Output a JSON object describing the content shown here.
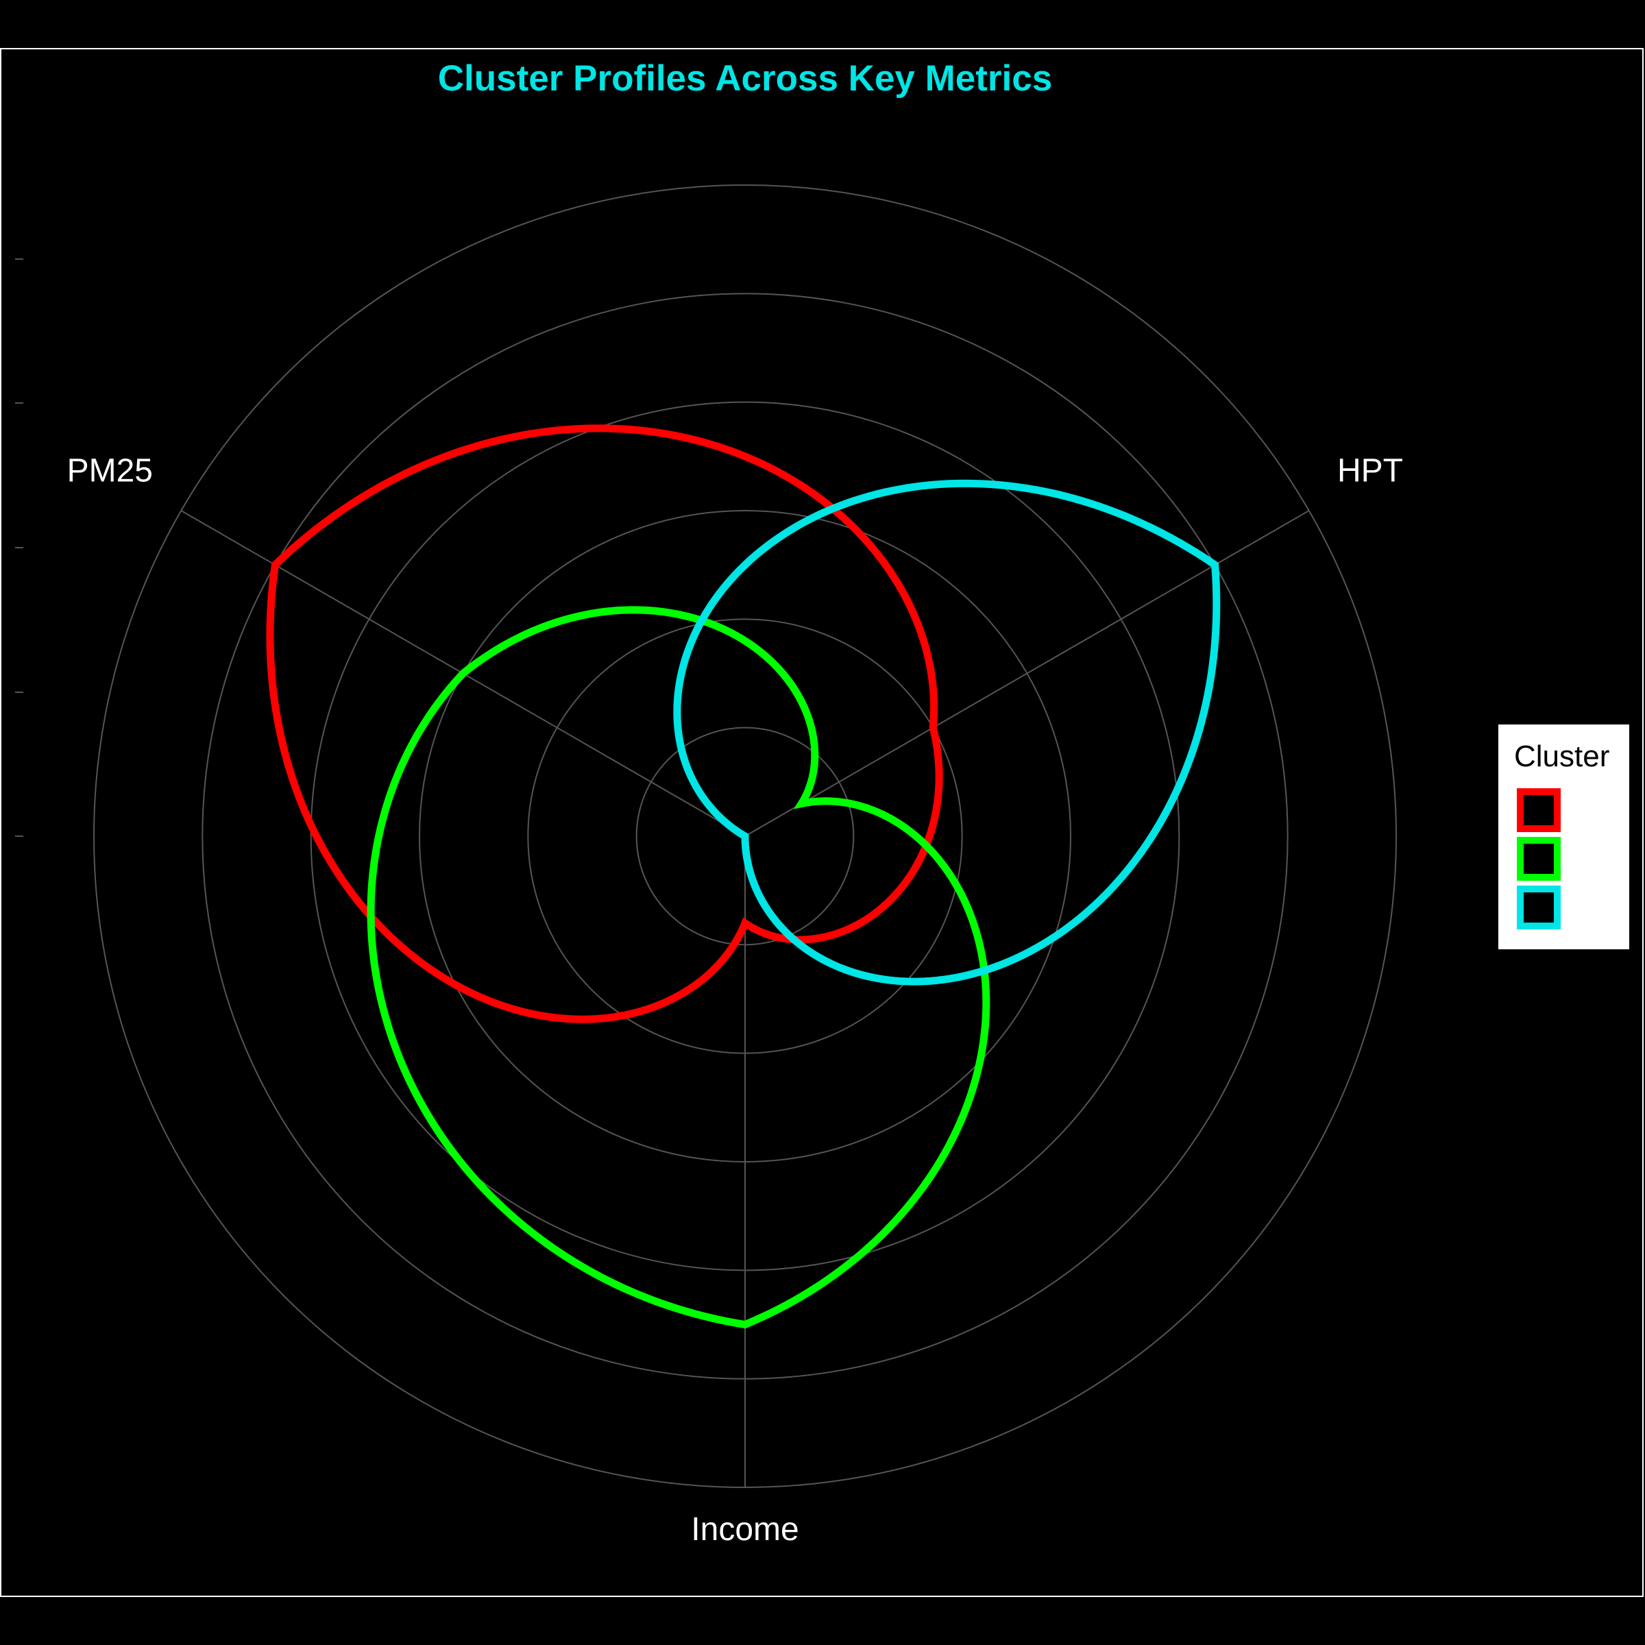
{
  "chart_data": {
    "type": "radar",
    "title": "Cluster Profiles Across Key Metrics",
    "axes": [
      "PM25",
      "HPT",
      "Income"
    ],
    "rlim": [
      0,
      6
    ],
    "ring_values": [
      1,
      2,
      3,
      4,
      5,
      6
    ],
    "grid": true,
    "series": [
      {
        "values": [
          5.0,
          2.0,
          0.8
        ]
      },
      {
        "values": [
          3.0,
          0.6,
          4.5
        ]
      },
      {
        "values": [
          0.0,
          5.0,
          0.0
        ]
      }
    ],
    "legend": {
      "title": "Cluster",
      "placement": "right",
      "entries": [
        "",
        "",
        ""
      ]
    },
    "colors": {
      "background": "#000000",
      "title": "#00e5e5",
      "grid": "#555555",
      "panel_border": "#ffffff",
      "axis_label": "#ffffff",
      "series": [
        "#ff0000",
        "#00ff00",
        "#00e5e5"
      ],
      "legend_background": "#ffffff"
    }
  }
}
